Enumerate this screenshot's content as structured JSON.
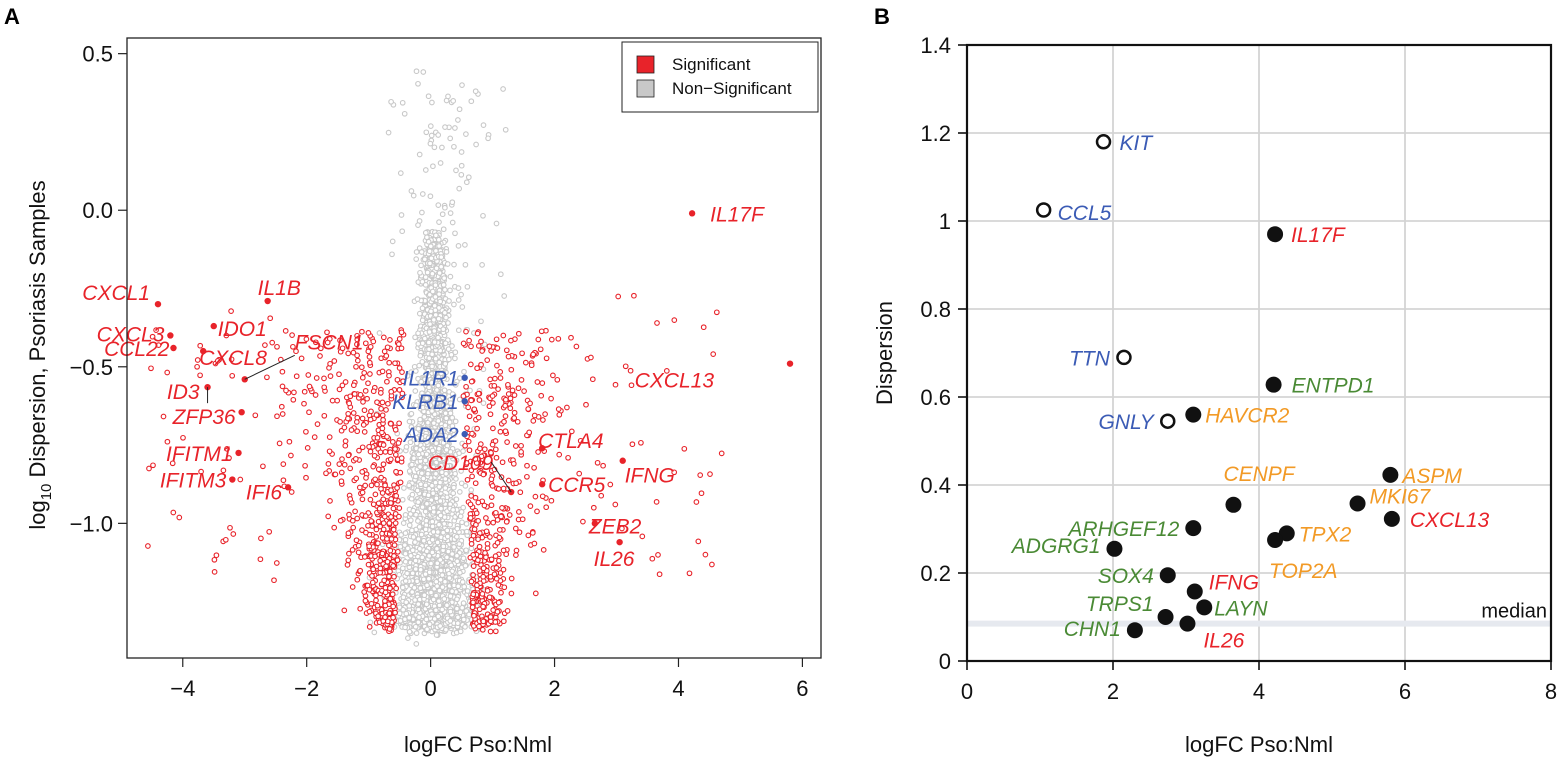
{
  "colors": {
    "significant": "#e8232a",
    "nonsignificant": "#c8c8c8",
    "blue": "#3b5bb5",
    "green": "#4a8a35",
    "orange": "#f29a26",
    "red": "#e8232a",
    "grid": "#d4d4d4",
    "median": "#e6e9ef"
  },
  "chart_data": [
    {
      "panel": "A",
      "type": "scatter",
      "title": "",
      "xlabel": "logFC Pso:Nml",
      "ylabel_prefix": "log",
      "ylabel_sub": "10",
      "ylabel_rest": " Dispersion, Psoriasis Samples",
      "xlim": [
        -4.9,
        6.3
      ],
      "ylim": [
        -1.43,
        0.55
      ],
      "xticks": [
        -4,
        -2,
        0,
        2,
        4,
        6
      ],
      "xtick_labels": [
        "−4",
        "−2",
        "0",
        "2",
        "4",
        "6"
      ],
      "yticks": [
        0.5,
        0.0,
        -0.5,
        -1.0
      ],
      "ytick_labels": [
        "0.5",
        "0.0",
        "−0.5",
        "−1.0"
      ],
      "grid": false,
      "legend_position": "top-right",
      "legend": [
        {
          "label": "Significant",
          "color": "#e8232a"
        },
        {
          "label": "Non−Significant",
          "color": "#c8c8c8"
        }
      ],
      "labeled_points": [
        {
          "gene": "IL17F",
          "x": 4.22,
          "y": -0.01,
          "group": "red"
        },
        {
          "gene": "CXCL13",
          "x": 5.8,
          "y": -0.49,
          "group": "red"
        },
        {
          "gene": "CXCL1",
          "x": -4.4,
          "y": -0.3,
          "group": "red"
        },
        {
          "gene": "IL1B",
          "x": -2.63,
          "y": -0.29,
          "group": "red"
        },
        {
          "gene": "IDO1",
          "x": -3.5,
          "y": -0.37,
          "group": "red"
        },
        {
          "gene": "CXCL3",
          "x": -4.2,
          "y": -0.4,
          "group": "red"
        },
        {
          "gene": "CCL22",
          "x": -4.15,
          "y": -0.44,
          "group": "red"
        },
        {
          "gene": "CXCL8",
          "x": -3.67,
          "y": -0.45,
          "group": "red"
        },
        {
          "gene": "FSCN1",
          "x": -3.0,
          "y": -0.54,
          "group": "red"
        },
        {
          "gene": "ID3",
          "x": -3.6,
          "y": -0.565,
          "group": "red"
        },
        {
          "gene": "ZFP36",
          "x": -3.05,
          "y": -0.645,
          "group": "red"
        },
        {
          "gene": "IFITM1",
          "x": -3.1,
          "y": -0.775,
          "group": "red"
        },
        {
          "gene": "IFITM3",
          "x": -3.2,
          "y": -0.86,
          "group": "red"
        },
        {
          "gene": "IFI6",
          "x": -2.3,
          "y": -0.885,
          "group": "red"
        },
        {
          "gene": "IL1R1",
          "x": 0.55,
          "y": -0.535,
          "group": "blue"
        },
        {
          "gene": "KLRB1",
          "x": 0.55,
          "y": -0.61,
          "group": "blue"
        },
        {
          "gene": "ADA2",
          "x": 0.55,
          "y": -0.715,
          "group": "blue"
        },
        {
          "gene": "CD109",
          "x": 1.3,
          "y": -0.9,
          "group": "red"
        },
        {
          "gene": "CTLA4",
          "x": 1.8,
          "y": -0.76,
          "group": "red"
        },
        {
          "gene": "CCR5",
          "x": 1.8,
          "y": -0.875,
          "group": "red"
        },
        {
          "gene": "IFNG",
          "x": 3.1,
          "y": -0.8,
          "group": "red"
        },
        {
          "gene": "ZEB2",
          "x": 2.65,
          "y": -1.0,
          "group": "red"
        },
        {
          "gene": "IL26",
          "x": 3.05,
          "y": -1.06,
          "group": "red"
        }
      ]
    },
    {
      "panel": "B",
      "type": "scatter",
      "title": "",
      "xlabel": "logFC Pso:Nml",
      "ylabel": "Dispersion",
      "xlim": [
        0,
        8
      ],
      "ylim": [
        0,
        1.4
      ],
      "xticks": [
        0,
        2,
        4,
        6,
        8
      ],
      "xtick_labels": [
        "0",
        "2",
        "4",
        "6",
        "8"
      ],
      "yticks": [
        0,
        0.2,
        0.4,
        0.6,
        0.8,
        1.0,
        1.2,
        1.4
      ],
      "ytick_labels": [
        "0",
        "0.2",
        "0.4",
        "0.6",
        "0.8",
        "1",
        "1.2",
        "1.4"
      ],
      "grid": true,
      "median_line": {
        "y": 0.085,
        "label": "median"
      },
      "points": [
        {
          "gene": "KIT",
          "x": 1.87,
          "y": 1.18,
          "filled": false,
          "group": "blue"
        },
        {
          "gene": "CCL5",
          "x": 1.05,
          "y": 1.025,
          "filled": false,
          "group": "blue"
        },
        {
          "gene": "IL17F",
          "x": 4.22,
          "y": 0.97,
          "filled": true,
          "group": "red"
        },
        {
          "gene": "TTN",
          "x": 2.15,
          "y": 0.69,
          "filled": false,
          "group": "blue"
        },
        {
          "gene": "ENTPD1",
          "x": 4.2,
          "y": 0.628,
          "filled": true,
          "group": "green"
        },
        {
          "gene": "GNLY",
          "x": 2.75,
          "y": 0.545,
          "filled": false,
          "group": "blue"
        },
        {
          "gene": "HAVCR2",
          "x": 3.1,
          "y": 0.56,
          "filled": true,
          "group": "orange"
        },
        {
          "gene": "CENPF",
          "x": 3.65,
          "y": 0.355,
          "filled": true,
          "group": "orange"
        },
        {
          "gene": "ASPM",
          "x": 5.8,
          "y": 0.423,
          "filled": true,
          "group": "orange"
        },
        {
          "gene": "MKI67",
          "x": 5.35,
          "y": 0.358,
          "filled": true,
          "group": "orange"
        },
        {
          "gene": "CXCL13",
          "x": 5.82,
          "y": 0.323,
          "filled": true,
          "group": "red"
        },
        {
          "gene": "ARHGEF12",
          "x": 3.1,
          "y": 0.302,
          "filled": true,
          "group": "green"
        },
        {
          "gene": "TPX2",
          "x": 4.38,
          "y": 0.29,
          "filled": true,
          "group": "orange"
        },
        {
          "gene": "TOP2A",
          "x": 4.22,
          "y": 0.275,
          "filled": true,
          "group": "orange"
        },
        {
          "gene": "ADGRG1",
          "x": 2.02,
          "y": 0.255,
          "filled": true,
          "group": "green"
        },
        {
          "gene": "SOX4",
          "x": 2.75,
          "y": 0.195,
          "filled": true,
          "group": "green"
        },
        {
          "gene": "IFNG",
          "x": 3.12,
          "y": 0.158,
          "filled": true,
          "group": "red"
        },
        {
          "gene": "LAYN",
          "x": 3.25,
          "y": 0.122,
          "filled": true,
          "group": "green"
        },
        {
          "gene": "TRPS1",
          "x": 2.72,
          "y": 0.1,
          "filled": true,
          "group": "green"
        },
        {
          "gene": "IL26",
          "x": 3.02,
          "y": 0.085,
          "filled": true,
          "group": "red"
        },
        {
          "gene": "CHN1",
          "x": 2.3,
          "y": 0.07,
          "filled": true,
          "group": "green"
        }
      ]
    }
  ]
}
